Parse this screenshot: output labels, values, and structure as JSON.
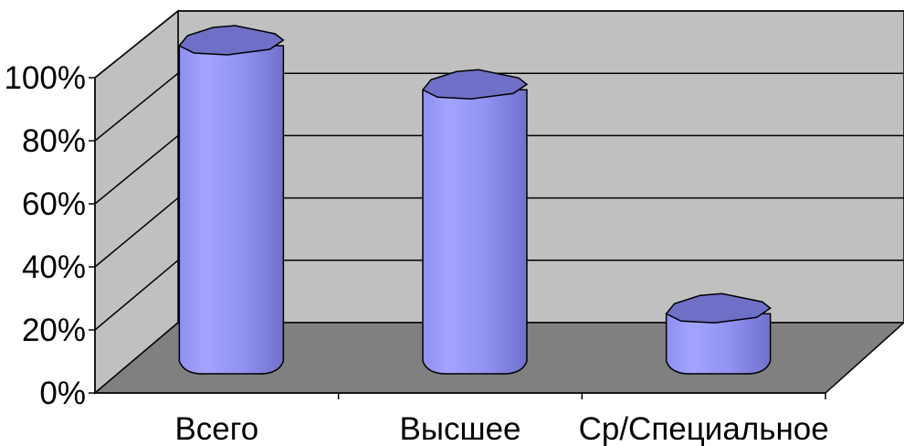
{
  "chart_data": {
    "type": "bar",
    "style": "3d-cylinder",
    "categories": [
      "Всего",
      "Высшее",
      "Ср/Специальное"
    ],
    "values": [
      100,
      86,
      15
    ],
    "ylim": [
      0,
      100
    ],
    "yticks": [
      "0%",
      "20%",
      "40%",
      "60%",
      "80%",
      "100%"
    ],
    "grid": true,
    "legend": "none",
    "colors": {
      "bar_front": "#9999ff",
      "bar_top": "#6f6fc8",
      "wall": "#c0c0c0",
      "floor": "#808080",
      "gridline": "#000000",
      "background": "#ffffff"
    }
  }
}
